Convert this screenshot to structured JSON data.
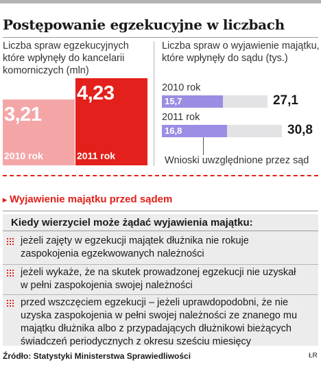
{
  "title": "Postępowanie egzekucyjne w liczbach",
  "colors": {
    "bar_2010": "#f4a6a7",
    "bar_2011": "#e3201b",
    "hbar_value": "#9b8de3",
    "hbar_rest": "#e3e3e6",
    "accent_red": "#e0201a"
  },
  "chart_data": [
    {
      "type": "bar",
      "title": "Liczba spraw egzekucyjnych które wpłynęły do kancelarii komorniczych (mln)",
      "categories": [
        "2010 rok",
        "2011 rok"
      ],
      "values": [
        3.21,
        4.23
      ],
      "value_labels": [
        "3,21",
        "4,23"
      ],
      "unit": "mln"
    },
    {
      "type": "bar",
      "orientation": "horizontal",
      "stacked": true,
      "title": "Liczba spraw o wyjawienie majątku, które wpłynęły do sądu (tys.)",
      "unit": "tys.",
      "categories": [
        "2010 rok",
        "2011 rok"
      ],
      "series": [
        {
          "name": "Wnioski uwzględnione przez sąd",
          "values": [
            15.7,
            16.8
          ],
          "labels": [
            "15,7",
            "16,8"
          ]
        }
      ],
      "totals": [
        27.1,
        30.8
      ],
      "total_labels": [
        "27,1",
        "30,8"
      ],
      "annotation": "Wnioski uwzględnione przez sąd"
    }
  ],
  "section_title": "Wyjawienie majątku przed sądem",
  "conditions": {
    "title": "Kiedy wierzyciel może żądać wyjawienia majątku:",
    "items": [
      [
        "jeżeli zajęty w egzekucji majątek dłużnika nie rokuje",
        "zaspokojenia egzekwowanych należności"
      ],
      [
        "jeżeli wykaże, że na skutek prowadzonej egzekucji nie uzyskał",
        "w pełni zaspokojenia swojej należności"
      ],
      [
        "przed wszczęciem egzekucji – jeżeli uprawdopodobni, że nie",
        "uzyska zaspokojenia w pełni swojej należności ze znanego mu",
        "majątku dłużnika albo z przypadających dłużnikowi bieżących",
        "świadczeń periodycznych z okresu sześciu miesięcy"
      ]
    ]
  },
  "source": "Źródło: Statystyki Ministerstwa Sprawiedliwości",
  "signature": "ŁR"
}
